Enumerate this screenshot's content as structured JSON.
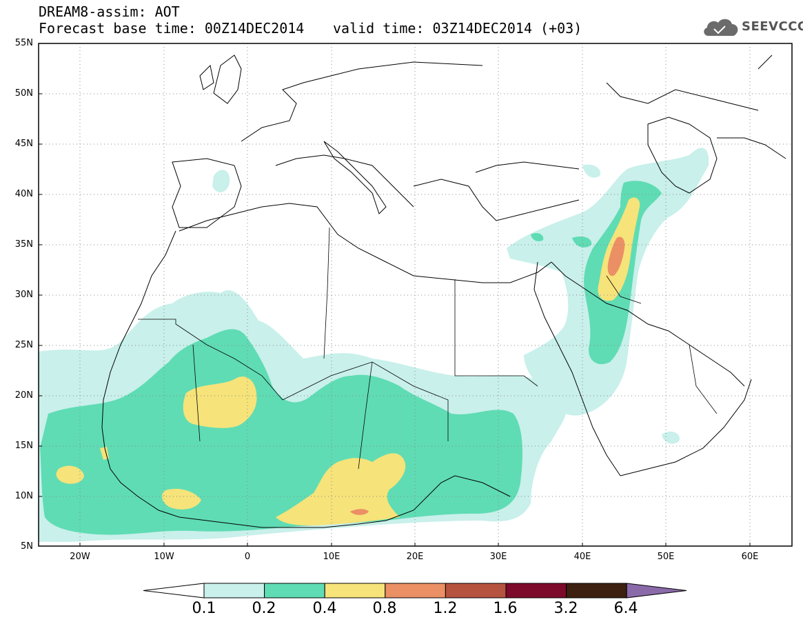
{
  "header": {
    "title_line1": "DREAM8-assim: AOT",
    "title_line2": "Forecast base time: 00Z14DEC2014",
    "valid_time": "valid time: 03Z14DEC2014 (+03)",
    "logo_text": "SEEVCCC",
    "logo_icon": "cloud-icon"
  },
  "map": {
    "lat_labels": [
      "55N",
      "50N",
      "45N",
      "40N",
      "35N",
      "30N",
      "25N",
      "20N",
      "15N",
      "10N",
      "5N"
    ],
    "lon_labels": [
      "20W",
      "10W",
      "0",
      "10E",
      "20E",
      "30E",
      "40E",
      "50E",
      "60E"
    ],
    "lat_range": [
      5,
      55
    ],
    "lon_range": [
      -25,
      65
    ],
    "grid": "dotted"
  },
  "colorbar": {
    "labels": [
      "0.1",
      "0.2",
      "0.4",
      "0.8",
      "1.2",
      "1.6",
      "3.2",
      "6.4"
    ],
    "colors": [
      "#ffffff",
      "#c9f0eb",
      "#5fdcb4",
      "#f6e37a",
      "#eb8f65",
      "#b5533f",
      "#7d0a2a",
      "#3d2010",
      "#8a6aa8"
    ]
  }
}
